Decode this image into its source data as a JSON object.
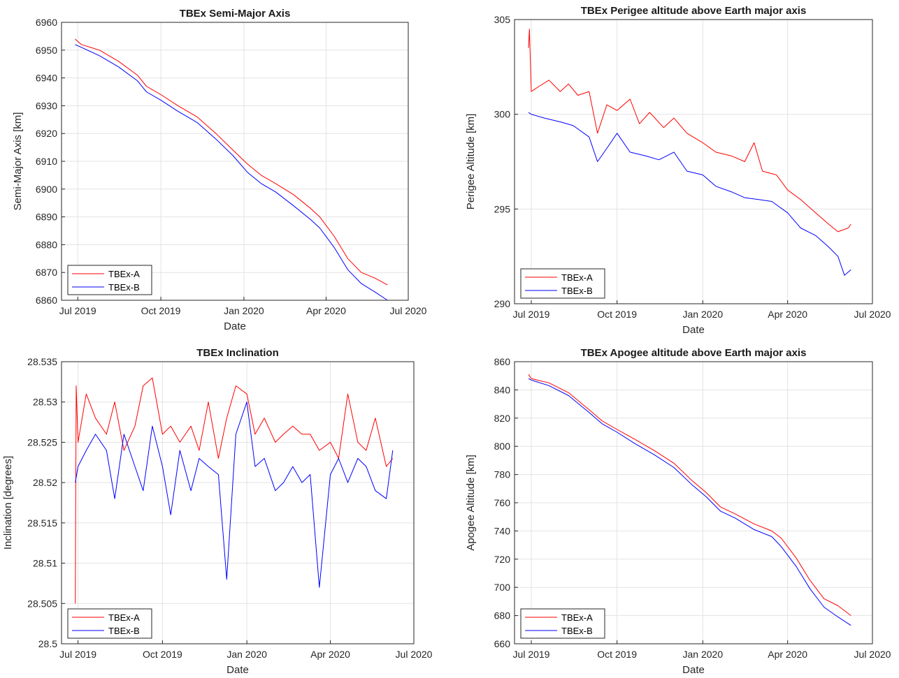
{
  "chart_data": [
    {
      "type": "line",
      "title": "TBEx Semi-Major Axis",
      "xlabel": "Date",
      "ylabel": "Semi-Major Axis [km]",
      "xlim": [
        "2019-06-13",
        "2020-07-01"
      ],
      "ylim": [
        6860,
        6960
      ],
      "xticks": [
        "Jul 2019",
        "Oct 2019",
        "Jan 2020",
        "Apr 2020",
        "Jul 2020"
      ],
      "yticks": [
        "6860",
        "6870",
        "6880",
        "6890",
        "6900",
        "6910",
        "6920",
        "6930",
        "6940",
        "6950",
        "6960"
      ],
      "grid": true,
      "legend": "bottom-left",
      "series": [
        {
          "name": "TBEx-A",
          "color": "#ff0000",
          "x": [
            "2019-06-28",
            "2019-07-05",
            "2019-07-25",
            "2019-08-15",
            "2019-09-05",
            "2019-09-15",
            "2019-10-01",
            "2019-10-20",
            "2019-11-10",
            "2019-12-01",
            "2019-12-20",
            "2020-01-05",
            "2020-01-20",
            "2020-02-05",
            "2020-02-25",
            "2020-03-15",
            "2020-03-25",
            "2020-04-10",
            "2020-04-25",
            "2020-05-10",
            "2020-05-25",
            "2020-06-08"
          ],
          "y": [
            6954,
            6952,
            6950,
            6946,
            6941,
            6937,
            6934,
            6930,
            6926,
            6920,
            6914,
            6909,
            6905,
            6902,
            6898,
            6893,
            6890,
            6883,
            6875,
            6870,
            6868,
            6865.5
          ]
        },
        {
          "name": "TBEx-B",
          "color": "#0000ff",
          "x": [
            "2019-06-28",
            "2019-07-05",
            "2019-07-25",
            "2019-08-15",
            "2019-09-05",
            "2019-09-15",
            "2019-10-01",
            "2019-10-20",
            "2019-11-10",
            "2019-12-01",
            "2019-12-20",
            "2020-01-05",
            "2020-01-20",
            "2020-02-05",
            "2020-02-25",
            "2020-03-15",
            "2020-03-25",
            "2020-04-10",
            "2020-04-25",
            "2020-05-10",
            "2020-05-25",
            "2020-06-08"
          ],
          "y": [
            6952,
            6951,
            6948,
            6944,
            6939,
            6935,
            6932,
            6928,
            6924,
            6918,
            6912,
            6906,
            6902,
            6899,
            6894,
            6889,
            6886,
            6879,
            6871,
            6866,
            6863,
            6860
          ]
        }
      ]
    },
    {
      "type": "line",
      "title": "TBEx Perigee altitude above Earth major axis",
      "xlabel": "Date",
      "ylabel": "Perigee Altitude [km]",
      "xlim": [
        "2019-06-13",
        "2020-07-01"
      ],
      "ylim": [
        290,
        305
      ],
      "xticks": [
        "Jul 2019",
        "Oct 2019",
        "Jan 2020",
        "Apr 2020",
        "Jul 2020"
      ],
      "yticks": [
        "290",
        "295",
        "300",
        "305"
      ],
      "grid": true,
      "legend": "bottom-left",
      "series": [
        {
          "name": "TBEx-A",
          "color": "#ff0000",
          "x": [
            "2019-06-28",
            "2019-06-29",
            "2019-07-01",
            "2019-07-10",
            "2019-07-20",
            "2019-08-01",
            "2019-08-10",
            "2019-08-20",
            "2019-09-01",
            "2019-09-10",
            "2019-09-20",
            "2019-10-01",
            "2019-10-15",
            "2019-10-25",
            "2019-11-05",
            "2019-11-20",
            "2019-12-01",
            "2019-12-15",
            "2020-01-01",
            "2020-01-15",
            "2020-02-01",
            "2020-02-15",
            "2020-02-25",
            "2020-03-05",
            "2020-03-20",
            "2020-04-01",
            "2020-04-15",
            "2020-05-01",
            "2020-05-15",
            "2020-05-25",
            "2020-06-05",
            "2020-06-08"
          ],
          "y": [
            303.5,
            304.5,
            301.2,
            301.5,
            301.8,
            301.2,
            301.6,
            301,
            301.2,
            299,
            300.5,
            300.2,
            300.8,
            299.5,
            300.1,
            299.3,
            299.8,
            299.0,
            298.5,
            298.0,
            297.8,
            297.5,
            298.5,
            297.0,
            296.8,
            296.0,
            295.5,
            294.8,
            294.2,
            293.8,
            294.0,
            294.2
          ]
        },
        {
          "name": "TBEx-B",
          "color": "#0000ff",
          "x": [
            "2019-06-28",
            "2019-07-01",
            "2019-07-15",
            "2019-08-01",
            "2019-08-15",
            "2019-09-01",
            "2019-09-10",
            "2019-09-20",
            "2019-10-01",
            "2019-10-15",
            "2019-11-01",
            "2019-11-15",
            "2019-12-01",
            "2019-12-15",
            "2020-01-01",
            "2020-01-15",
            "2020-02-01",
            "2020-02-15",
            "2020-03-01",
            "2020-03-15",
            "2020-04-01",
            "2020-04-15",
            "2020-05-01",
            "2020-05-15",
            "2020-05-25",
            "2020-06-01",
            "2020-06-08"
          ],
          "y": [
            300.1,
            300,
            299.8,
            299.6,
            299.4,
            298.8,
            297.5,
            298.2,
            299.0,
            298.0,
            297.8,
            297.6,
            298,
            297.0,
            296.8,
            296.2,
            295.9,
            295.6,
            295.5,
            295.4,
            294.8,
            294.0,
            293.6,
            293.0,
            292.5,
            291.5,
            291.8
          ]
        }
      ]
    },
    {
      "type": "line",
      "title": "TBEx Inclination",
      "xlabel": "Date",
      "ylabel": "Inclination [degrees]",
      "xlim": [
        "2019-06-13",
        "2020-07-01"
      ],
      "ylim": [
        28.5,
        28.535
      ],
      "xticks": [
        "Jul 2019",
        "Oct 2019",
        "Jan 2020",
        "Apr 2020",
        "Jul 2020"
      ],
      "yticks": [
        "28.5",
        "28.505",
        "28.51",
        "28.515",
        "28.52",
        "28.525",
        "28.53",
        "28.535"
      ],
      "grid": true,
      "legend": "bottom-left",
      "series": [
        {
          "name": "TBEx-A",
          "color": "#ff0000",
          "x": [
            "2019-06-28",
            "2019-06-29",
            "2019-07-01",
            "2019-07-10",
            "2019-07-20",
            "2019-08-01",
            "2019-08-10",
            "2019-08-20",
            "2019-09-01",
            "2019-09-10",
            "2019-09-20",
            "2019-10-01",
            "2019-10-10",
            "2019-10-20",
            "2019-11-01",
            "2019-11-10",
            "2019-11-20",
            "2019-12-01",
            "2019-12-10",
            "2019-12-20",
            "2020-01-01",
            "2020-01-10",
            "2020-01-20",
            "2020-02-01",
            "2020-02-10",
            "2020-02-20",
            "2020-03-01",
            "2020-03-10",
            "2020-03-20",
            "2020-04-01",
            "2020-04-10",
            "2020-04-20",
            "2020-05-01",
            "2020-05-10",
            "2020-05-20",
            "2020-06-01",
            "2020-06-08"
          ],
          "y": [
            28.505,
            28.532,
            28.525,
            28.531,
            28.528,
            28.526,
            28.53,
            28.524,
            28.527,
            28.532,
            28.533,
            28.526,
            28.527,
            28.525,
            28.527,
            28.524,
            28.53,
            28.523,
            28.528,
            28.532,
            28.531,
            28.526,
            28.528,
            28.525,
            28.526,
            28.527,
            28.526,
            28.526,
            28.524,
            28.525,
            28.523,
            28.531,
            28.525,
            28.524,
            28.528,
            28.522,
            28.523
          ]
        },
        {
          "name": "TBEx-B",
          "color": "#0000ff",
          "x": [
            "2019-06-28",
            "2019-07-01",
            "2019-07-10",
            "2019-07-20",
            "2019-08-01",
            "2019-08-10",
            "2019-08-20",
            "2019-09-01",
            "2019-09-10",
            "2019-09-20",
            "2019-10-01",
            "2019-10-10",
            "2019-10-20",
            "2019-11-01",
            "2019-11-10",
            "2019-11-20",
            "2019-12-01",
            "2019-12-10",
            "2019-12-20",
            "2020-01-01",
            "2020-01-10",
            "2020-01-20",
            "2020-02-01",
            "2020-02-10",
            "2020-02-20",
            "2020-03-01",
            "2020-03-10",
            "2020-03-20",
            "2020-04-01",
            "2020-04-10",
            "2020-04-20",
            "2020-05-01",
            "2020-05-10",
            "2020-05-20",
            "2020-06-01",
            "2020-06-08"
          ],
          "y": [
            28.52,
            28.522,
            28.524,
            28.526,
            28.524,
            28.518,
            28.526,
            28.522,
            28.519,
            28.527,
            28.522,
            28.516,
            28.524,
            28.519,
            28.523,
            28.522,
            28.521,
            28.508,
            28.526,
            28.53,
            28.522,
            28.523,
            28.519,
            28.52,
            28.522,
            28.52,
            28.521,
            28.507,
            28.521,
            28.523,
            28.52,
            28.523,
            28.522,
            28.519,
            28.518,
            28.524
          ]
        }
      ]
    },
    {
      "type": "line",
      "title": "TBEx Apogee altitude above Earth major axis",
      "xlabel": "Date",
      "ylabel": "Apogee Altitude [km]",
      "xlim": [
        "2019-06-13",
        "2020-07-01"
      ],
      "ylim": [
        660,
        860
      ],
      "xticks": [
        "Jul 2019",
        "Oct 2019",
        "Jan 2020",
        "Apr 2020",
        "Jul 2020"
      ],
      "yticks": [
        "660",
        "680",
        "700",
        "720",
        "740",
        "760",
        "780",
        "800",
        "820",
        "840",
        "860"
      ],
      "grid": true,
      "legend": "bottom-left",
      "series": [
        {
          "name": "TBEx-A",
          "color": "#ff0000",
          "x": [
            "2019-06-28",
            "2019-07-01",
            "2019-07-20",
            "2019-08-10",
            "2019-09-01",
            "2019-09-15",
            "2019-10-01",
            "2019-10-20",
            "2019-11-10",
            "2019-12-01",
            "2019-12-20",
            "2020-01-05",
            "2020-01-20",
            "2020-02-05",
            "2020-02-25",
            "2020-03-15",
            "2020-03-25",
            "2020-04-10",
            "2020-04-25",
            "2020-05-10",
            "2020-05-25",
            "2020-06-08"
          ],
          "y": [
            851,
            848,
            845,
            838,
            826,
            818,
            812,
            805,
            797,
            788,
            776,
            767,
            757,
            752,
            745,
            740,
            735,
            721,
            705,
            692,
            687,
            680
          ]
        },
        {
          "name": "TBEx-B",
          "color": "#0000ff",
          "x": [
            "2019-06-28",
            "2019-07-01",
            "2019-07-20",
            "2019-08-10",
            "2019-09-01",
            "2019-09-15",
            "2019-10-01",
            "2019-10-20",
            "2019-11-10",
            "2019-12-01",
            "2019-12-20",
            "2020-01-05",
            "2020-01-20",
            "2020-02-05",
            "2020-02-25",
            "2020-03-15",
            "2020-03-25",
            "2020-04-10",
            "2020-04-25",
            "2020-05-10",
            "2020-05-25",
            "2020-06-08"
          ],
          "y": [
            848,
            847,
            843,
            836,
            824,
            816,
            810,
            802,
            794,
            785,
            773,
            764,
            754,
            749,
            741,
            736,
            729,
            715,
            699,
            686,
            679,
            673
          ]
        }
      ]
    }
  ]
}
